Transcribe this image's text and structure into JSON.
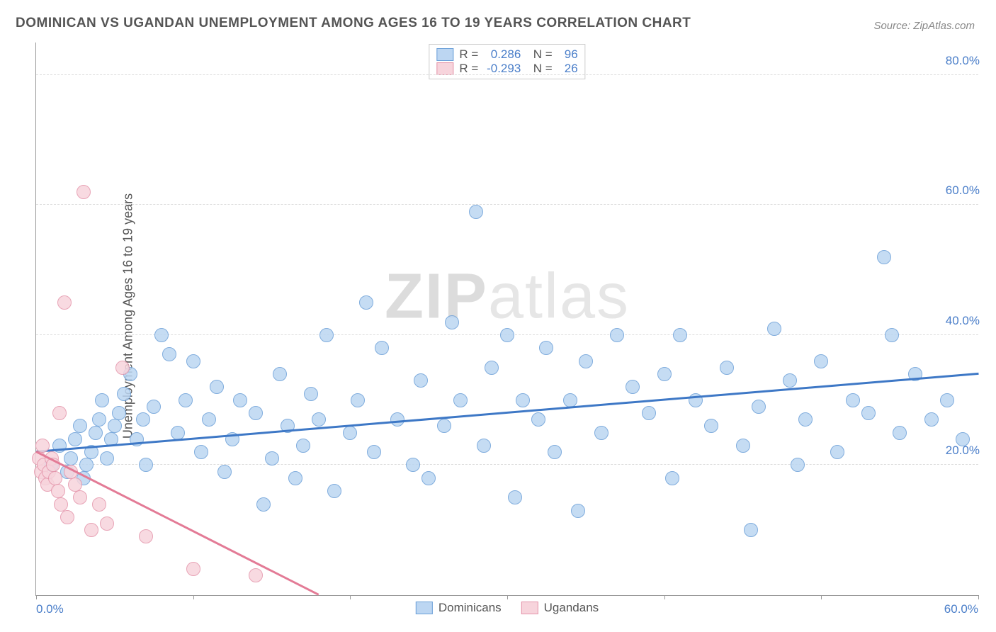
{
  "title": "DOMINICAN VS UGANDAN UNEMPLOYMENT AMONG AGES 16 TO 19 YEARS CORRELATION CHART",
  "source": "Source: ZipAtlas.com",
  "ylabel": "Unemployment Among Ages 16 to 19 years",
  "watermark": {
    "bold": "ZIP",
    "rest": "atlas"
  },
  "chart": {
    "type": "scatter",
    "xlim": [
      0,
      60
    ],
    "ylim": [
      0,
      85
    ],
    "xticks": [
      0,
      10,
      20,
      30,
      40,
      50,
      60
    ],
    "yticks": [
      20,
      40,
      60,
      80
    ],
    "xtick_labels": {
      "0": "0.0%",
      "60": "60.0%"
    },
    "ytick_labels": {
      "20": "20.0%",
      "40": "40.0%",
      "60": "60.0%",
      "80": "80.0%"
    },
    "grid_color": "#dddddd",
    "axis_color": "#999999",
    "background": "#ffffff",
    "marker_radius": 9,
    "series": [
      {
        "name": "Dominicans",
        "color_fill": "#bcd6f2",
        "color_stroke": "#6b9fd8",
        "trend_color": "#3e78c6",
        "R": "0.286",
        "N": "96",
        "trend": {
          "x1": 0,
          "y1": 22,
          "x2": 60,
          "y2": 34
        },
        "points": [
          [
            1,
            20
          ],
          [
            1.5,
            23
          ],
          [
            2,
            19
          ],
          [
            2.2,
            21
          ],
          [
            2.5,
            24
          ],
          [
            2.8,
            26
          ],
          [
            3,
            18
          ],
          [
            3.2,
            20
          ],
          [
            3.5,
            22
          ],
          [
            3.8,
            25
          ],
          [
            4,
            27
          ],
          [
            4.2,
            30
          ],
          [
            4.5,
            21
          ],
          [
            4.8,
            24
          ],
          [
            5,
            26
          ],
          [
            5.3,
            28
          ],
          [
            5.6,
            31
          ],
          [
            6,
            34
          ],
          [
            6.4,
            24
          ],
          [
            6.8,
            27
          ],
          [
            7,
            20
          ],
          [
            7.5,
            29
          ],
          [
            8,
            40
          ],
          [
            8.5,
            37
          ],
          [
            9,
            25
          ],
          [
            9.5,
            30
          ],
          [
            10,
            36
          ],
          [
            10.5,
            22
          ],
          [
            11,
            27
          ],
          [
            11.5,
            32
          ],
          [
            12,
            19
          ],
          [
            12.5,
            24
          ],
          [
            13,
            30
          ],
          [
            14,
            28
          ],
          [
            14.5,
            14
          ],
          [
            15,
            21
          ],
          [
            15.5,
            34
          ],
          [
            16,
            26
          ],
          [
            16.5,
            18
          ],
          [
            17,
            23
          ],
          [
            17.5,
            31
          ],
          [
            18,
            27
          ],
          [
            18.5,
            40
          ],
          [
            19,
            16
          ],
          [
            20,
            25
          ],
          [
            20.5,
            30
          ],
          [
            21,
            45
          ],
          [
            21.5,
            22
          ],
          [
            22,
            38
          ],
          [
            23,
            27
          ],
          [
            24,
            20
          ],
          [
            24.5,
            33
          ],
          [
            25,
            18
          ],
          [
            26,
            26
          ],
          [
            26.5,
            42
          ],
          [
            27,
            30
          ],
          [
            28,
            59
          ],
          [
            28.5,
            23
          ],
          [
            29,
            35
          ],
          [
            30,
            40
          ],
          [
            30.5,
            15
          ],
          [
            31,
            30
          ],
          [
            32,
            27
          ],
          [
            32.5,
            38
          ],
          [
            33,
            22
          ],
          [
            34,
            30
          ],
          [
            34.5,
            13
          ],
          [
            35,
            36
          ],
          [
            36,
            25
          ],
          [
            37,
            40
          ],
          [
            38,
            32
          ],
          [
            39,
            28
          ],
          [
            40,
            34
          ],
          [
            40.5,
            18
          ],
          [
            41,
            40
          ],
          [
            42,
            30
          ],
          [
            43,
            26
          ],
          [
            44,
            35
          ],
          [
            45,
            23
          ],
          [
            45.5,
            10
          ],
          [
            46,
            29
          ],
          [
            47,
            41
          ],
          [
            48,
            33
          ],
          [
            48.5,
            20
          ],
          [
            49,
            27
          ],
          [
            50,
            36
          ],
          [
            51,
            22
          ],
          [
            52,
            30
          ],
          [
            53,
            28
          ],
          [
            54,
            52
          ],
          [
            54.5,
            40
          ],
          [
            55,
            25
          ],
          [
            56,
            34
          ],
          [
            57,
            27
          ],
          [
            58,
            30
          ],
          [
            59,
            24
          ]
        ]
      },
      {
        "name": "Ugandans",
        "color_fill": "#f7d4dc",
        "color_stroke": "#e494aa",
        "trend_color": "#e37b96",
        "R": "-0.293",
        "N": "26",
        "trend": {
          "x1": 0,
          "y1": 22,
          "x2": 18,
          "y2": 0
        },
        "points": [
          [
            0.2,
            21
          ],
          [
            0.3,
            19
          ],
          [
            0.4,
            23
          ],
          [
            0.5,
            20
          ],
          [
            0.6,
            18
          ],
          [
            0.7,
            17
          ],
          [
            0.8,
            19
          ],
          [
            1,
            21
          ],
          [
            1.1,
            20
          ],
          [
            1.2,
            18
          ],
          [
            1.4,
            16
          ],
          [
            1.5,
            28
          ],
          [
            1.6,
            14
          ],
          [
            1.8,
            45
          ],
          [
            2,
            12
          ],
          [
            2.2,
            19
          ],
          [
            2.5,
            17
          ],
          [
            2.8,
            15
          ],
          [
            3,
            62
          ],
          [
            3.5,
            10
          ],
          [
            4,
            14
          ],
          [
            4.5,
            11
          ],
          [
            5.5,
            35
          ],
          [
            7,
            9
          ],
          [
            10,
            4
          ],
          [
            14,
            3
          ]
        ]
      }
    ],
    "legend_bottom": [
      {
        "label": "Dominicans",
        "fill": "#bcd6f2",
        "stroke": "#6b9fd8"
      },
      {
        "label": "Ugandans",
        "fill": "#f7d4dc",
        "stroke": "#e494aa"
      }
    ]
  }
}
